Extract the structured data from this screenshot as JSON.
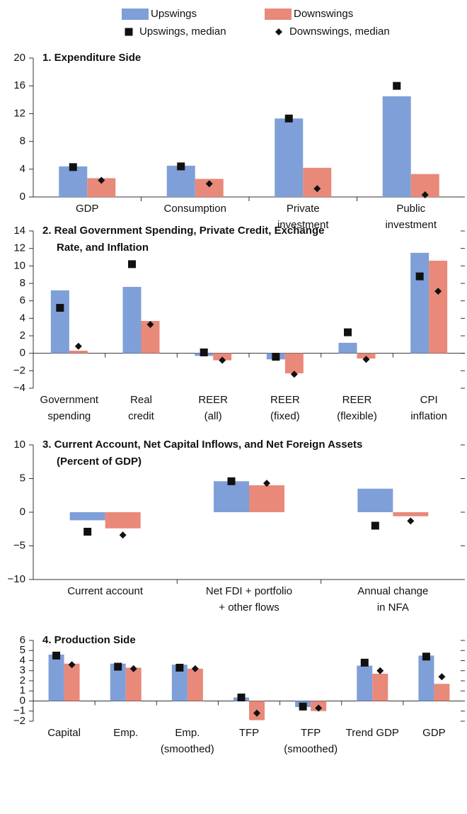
{
  "chart_data": [
    {
      "type": "bar",
      "title": [
        "1. Expenditure Side"
      ],
      "categories": [
        [
          "GDP"
        ],
        [
          "Consumption"
        ],
        [
          "Private",
          "investment"
        ],
        [
          "Public",
          "investment"
        ]
      ],
      "series": [
        {
          "name": "Upswings",
          "color": "#7f9fd8",
          "marker": "bar",
          "values": [
            4.4,
            4.5,
            11.3,
            14.5
          ]
        },
        {
          "name": "Downswings",
          "color": "#e8897a",
          "marker": "bar",
          "values": [
            2.7,
            2.6,
            4.2,
            3.3
          ]
        },
        {
          "name": "Upswings, median",
          "color": "#111111",
          "marker": "square",
          "values": [
            4.3,
            4.4,
            11.3,
            16.0
          ]
        },
        {
          "name": "Downswings, median",
          "color": "#111111",
          "marker": "diamond",
          "values": [
            2.4,
            1.9,
            1.2,
            0.3
          ]
        }
      ],
      "ylim": [
        0,
        20
      ],
      "yticks": [
        0,
        4,
        8,
        12,
        16,
        20
      ],
      "mirror_ticks": false
    },
    {
      "type": "bar",
      "title": [
        "2. Real Government Spending, Private Credit, Exchange",
        "Rate, and Inflation"
      ],
      "categories": [
        [
          "Government",
          "spending"
        ],
        [
          "Real",
          "credit"
        ],
        [
          "REER",
          "(all)"
        ],
        [
          "REER",
          "(fixed)"
        ],
        [
          "REER",
          "(flexible)"
        ],
        [
          "CPI",
          "inflation"
        ]
      ],
      "series": [
        {
          "values": [
            7.2,
            7.6,
            -0.3,
            -0.7,
            1.2,
            11.5
          ]
        },
        {
          "values": [
            0.3,
            3.7,
            -0.8,
            -2.3,
            -0.6,
            10.6
          ]
        },
        {
          "values": [
            5.2,
            10.2,
            0.1,
            -0.4,
            2.4,
            8.8
          ]
        },
        {
          "values": [
            0.8,
            3.3,
            -0.8,
            -2.4,
            -0.7,
            7.1
          ]
        }
      ],
      "ylim": [
        -4,
        14
      ],
      "yticks": [
        {
          "value": -4,
          "label": "−4"
        },
        {
          "value": -2,
          "label": "−2"
        },
        0,
        2,
        4,
        6,
        8,
        10,
        12,
        14
      ],
      "mirror_ticks": true
    },
    {
      "type": "bar",
      "title": [
        "3. Current Account, Net Capital Inflows, and Net Foreign Assets",
        "(Percent of GDP)"
      ],
      "categories": [
        [
          "Current account"
        ],
        [
          "Net FDI + portfolio",
          "+ other flows"
        ],
        [
          "Annual change",
          "in NFA"
        ]
      ],
      "series": [
        {
          "values": [
            -1.2,
            4.6,
            3.5
          ]
        },
        {
          "values": [
            -2.4,
            4.0,
            -0.6
          ]
        },
        {
          "values": [
            -2.9,
            4.6,
            -2.0
          ]
        },
        {
          "values": [
            -3.4,
            4.3,
            -1.3
          ]
        }
      ],
      "ylim": [
        -10,
        10
      ],
      "yticks": [
        {
          "value": -10,
          "label": "−10"
        },
        {
          "value": -5,
          "label": "−5"
        },
        0,
        5,
        10
      ],
      "mirror_ticks": true
    },
    {
      "type": "bar",
      "title": [
        "4. Production Side"
      ],
      "categories": [
        [
          "Capital"
        ],
        [
          "Emp."
        ],
        [
          "Emp.",
          "(smoothed)"
        ],
        [
          "TFP"
        ],
        [
          "TFP",
          "(smoothed)"
        ],
        [
          "Trend GDP"
        ],
        [
          "GDP"
        ]
      ],
      "series": [
        {
          "values": [
            4.6,
            3.7,
            3.6,
            0.35,
            -0.6,
            3.5,
            4.5
          ]
        },
        {
          "values": [
            3.7,
            3.3,
            3.2,
            -1.9,
            -1.0,
            2.7,
            1.7
          ]
        },
        {
          "values": [
            4.5,
            3.4,
            3.3,
            0.35,
            -0.55,
            3.8,
            4.4
          ]
        },
        {
          "values": [
            3.6,
            3.2,
            3.2,
            -1.2,
            -0.7,
            3.0,
            2.4
          ]
        }
      ],
      "ylim": [
        -2,
        6
      ],
      "yticks": [
        {
          "value": -2,
          "label": "−2"
        },
        {
          "value": -1,
          "label": "−1"
        },
        0,
        1,
        2,
        3,
        4,
        5,
        6
      ],
      "mirror_ticks": true
    }
  ]
}
